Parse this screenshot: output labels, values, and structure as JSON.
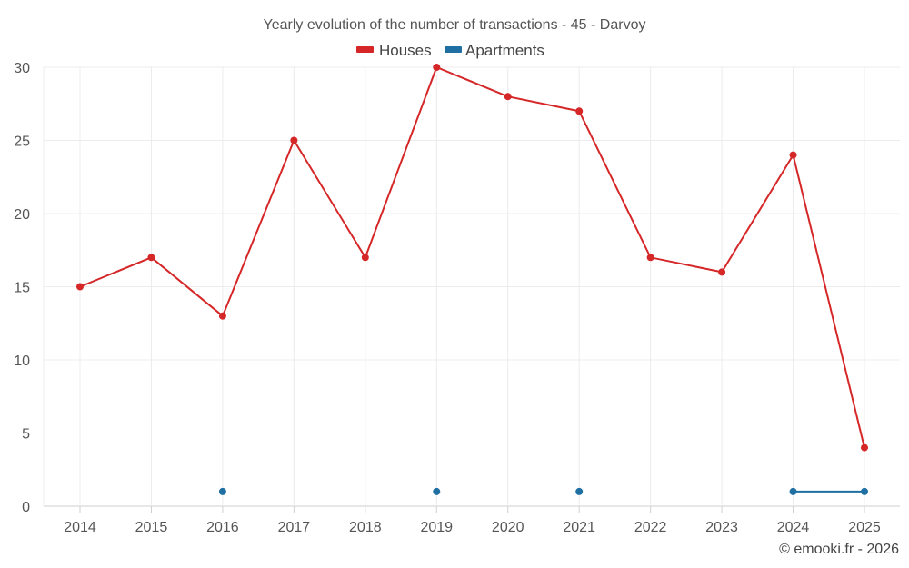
{
  "chart_data": {
    "type": "line",
    "title": "Yearly evolution of the number of transactions - 45 - Darvoy",
    "categories": [
      "2014",
      "2015",
      "2016",
      "2017",
      "2018",
      "2019",
      "2020",
      "2021",
      "2022",
      "2023",
      "2024",
      "2025"
    ],
    "ylim": [
      0,
      30
    ],
    "yticks": [
      0,
      5,
      10,
      15,
      20,
      25,
      30
    ],
    "grid": true,
    "legend": "top-center",
    "series": [
      {
        "name": "Houses",
        "color": "#d62728",
        "values": [
          15,
          17,
          13,
          25,
          17,
          30,
          28,
          27,
          17,
          16,
          24,
          4
        ]
      },
      {
        "name": "Apartments",
        "color": "#1f6fa3",
        "values": [
          null,
          null,
          1,
          null,
          null,
          1,
          null,
          1,
          null,
          null,
          1,
          1
        ]
      }
    ]
  },
  "credit": "© emooki.fr - 2026"
}
